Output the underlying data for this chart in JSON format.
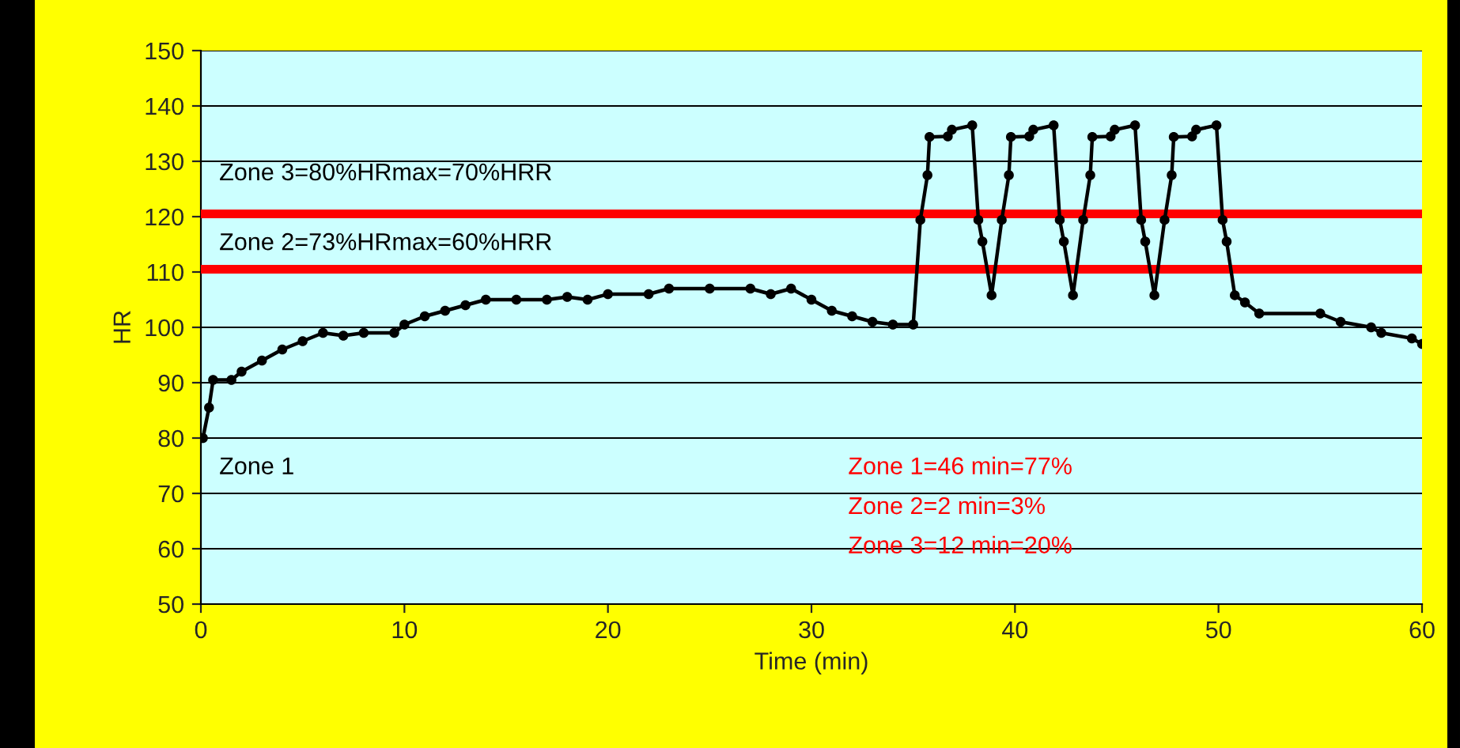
{
  "chart_data": {
    "type": "line",
    "xlabel": "Time (min)",
    "ylabel": "HR",
    "xlim": [
      0,
      60
    ],
    "xticks": [
      0,
      10,
      20,
      30,
      40,
      50,
      60
    ],
    "ylim": [
      50,
      150
    ],
    "yticks": [
      50,
      60,
      70,
      80,
      90,
      100,
      110,
      120,
      130,
      140,
      150
    ],
    "grid": "y",
    "marker": "circle",
    "line_style": "solid",
    "series": [
      {
        "color": "#000000",
        "x": [
          0.1,
          0.4,
          0.6,
          1.5,
          2,
          3,
          4,
          5,
          6,
          7,
          8,
          9.5,
          10,
          11,
          12,
          13,
          14,
          15.5,
          17,
          18,
          19,
          20,
          22,
          23,
          25,
          27,
          28,
          29,
          30,
          31,
          32,
          33,
          34,
          35,
          35.35,
          35.7,
          35.8,
          36.7,
          36.9,
          37.9,
          38.2,
          38.4,
          38.85,
          39.35,
          39.7,
          39.8,
          40.7,
          40.9,
          41.9,
          42.2,
          42.4,
          42.85,
          43.35,
          43.7,
          43.8,
          44.7,
          44.9,
          45.9,
          46.2,
          46.4,
          46.85,
          47.35,
          47.7,
          47.8,
          48.7,
          48.9,
          49.9,
          50.2,
          50.4,
          50.8,
          51.3,
          52,
          55,
          56,
          57.5,
          58,
          59.5,
          60
        ],
        "values": [
          80,
          85.5,
          90.5,
          90.5,
          92,
          94,
          96,
          97.5,
          99,
          98.5,
          99,
          99,
          100.5,
          102,
          103,
          104,
          105,
          105,
          105,
          105.5,
          105,
          106,
          106,
          107,
          107,
          107,
          106,
          107,
          105,
          103,
          102,
          101,
          100.5,
          100.5,
          119.4,
          127.5,
          134.4,
          134.5,
          135.7,
          136.5,
          119.4,
          115.5,
          105.8,
          119.4,
          127.5,
          134.4,
          134.5,
          135.7,
          136.5,
          119.4,
          115.5,
          105.8,
          119.4,
          127.5,
          134.4,
          134.5,
          135.7,
          136.5,
          119.4,
          115.5,
          105.8,
          119.4,
          127.5,
          134.4,
          134.5,
          135.7,
          136.5,
          119.4,
          115.5,
          105.8,
          104.5,
          102.5,
          102.5,
          101,
          100,
          99,
          98,
          97
        ]
      }
    ],
    "ref_lines": [
      {
        "axis": "y",
        "value": 120.5,
        "color": "#ff0000"
      },
      {
        "axis": "y",
        "value": 110.5,
        "color": "#ff0000"
      }
    ],
    "annotations": [
      "Zone 3=80%HRmax=70%HRR",
      "Zone 2=73%HRmax=60%HRR",
      "Zone 1",
      "Zone 1=46 min=77%",
      "Zone 2=2 min=3%",
      "Zone 3=12 min=20%"
    ]
  }
}
